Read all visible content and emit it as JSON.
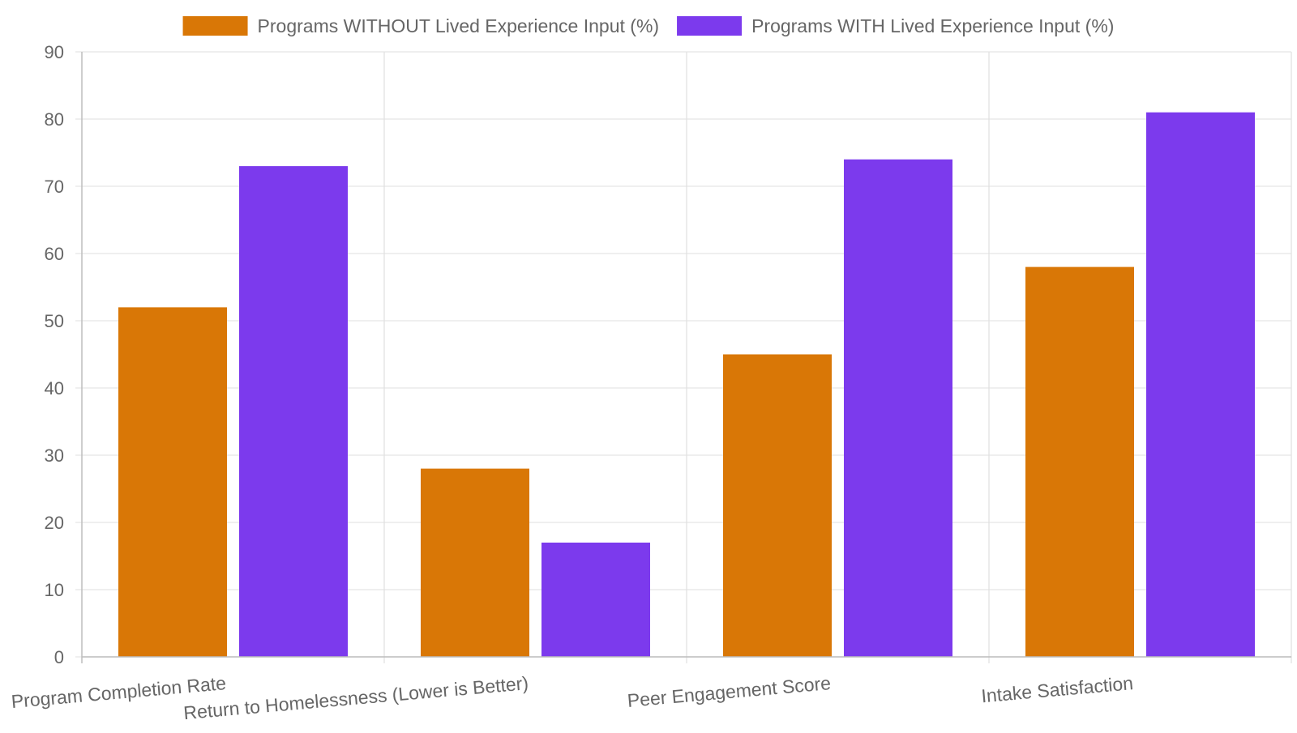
{
  "chart_data": {
    "type": "bar",
    "categories": [
      "Program Completion Rate",
      "Return to Homelessness (Lower is Better)",
      "Peer Engagement Score",
      "Intake Satisfaction"
    ],
    "series": [
      {
        "name": "Programs WITHOUT Lived Experience Input (%)",
        "color": "#d97706",
        "values": [
          52,
          28,
          45,
          58
        ]
      },
      {
        "name": "Programs WITH Lived Experience Input (%)",
        "color": "#7c3aed",
        "values": [
          73,
          17,
          74,
          81
        ]
      }
    ],
    "ylim": [
      0,
      90
    ],
    "yticks": [
      0,
      10,
      20,
      30,
      40,
      50,
      60,
      70,
      80,
      90
    ],
    "grid": true,
    "legend": "top-center"
  }
}
